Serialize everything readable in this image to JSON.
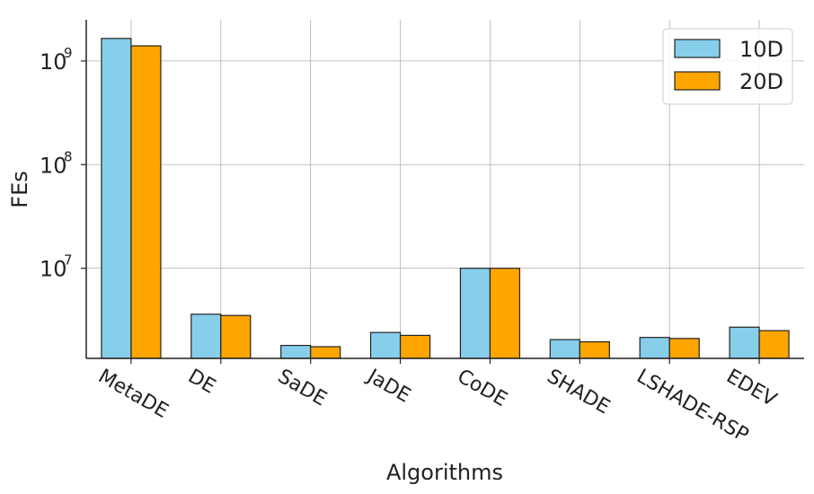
{
  "chart_data": {
    "type": "bar",
    "title": "",
    "xlabel": "Algorithms",
    "ylabel": "FEs",
    "yscale": "log",
    "ylim": [
      1350000,
      2500000000
    ],
    "yticks": [
      {
        "value": 10000000,
        "base": "10",
        "exp": "7"
      },
      {
        "value": 100000000,
        "base": "10",
        "exp": "8"
      },
      {
        "value": 1000000000,
        "base": "10",
        "exp": "9"
      }
    ],
    "grid": true,
    "legend_position": "top-right",
    "categories": [
      "MetaDE",
      "DE",
      "SaDE",
      "JaDE",
      "CoDE",
      "SHADE",
      "LSHADE-RSP",
      "EDEV"
    ],
    "series": [
      {
        "name": "10D",
        "color": "#87ceeb",
        "values": [
          1650000000,
          3600000,
          1800000,
          2400000,
          10000000,
          2050000,
          2150000,
          2700000
        ]
      },
      {
        "name": "20D",
        "color": "#ffa500",
        "values": [
          1400000000,
          3500000,
          1750000,
          2250000,
          10000000,
          1950000,
          2100000,
          2500000
        ]
      }
    ]
  }
}
